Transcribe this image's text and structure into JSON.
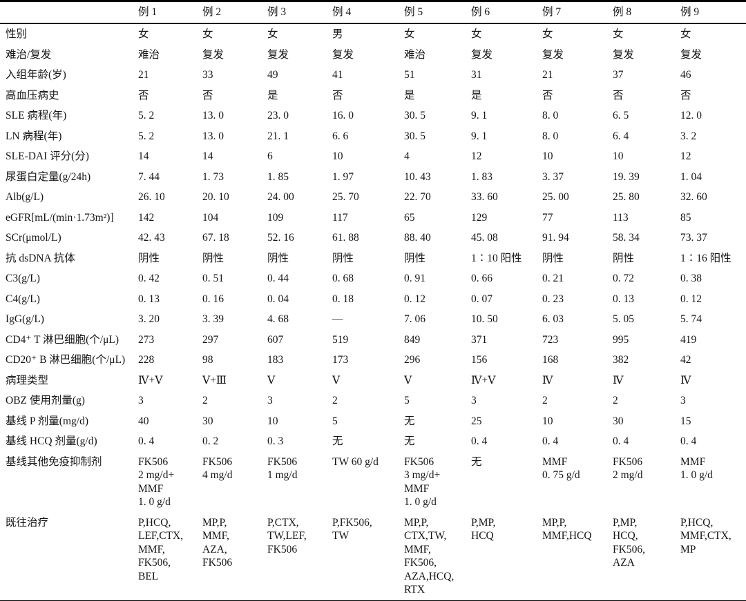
{
  "table": {
    "corner_label": "",
    "case_headers": [
      "例 1",
      "例 2",
      "例 3",
      "例 4",
      "例 5",
      "例 6",
      "例 7",
      "例 8",
      "例 9"
    ],
    "rows": [
      {
        "label": "性别",
        "cells": [
          "女",
          "女",
          "女",
          "男",
          "女",
          "女",
          "女",
          "女",
          "女"
        ]
      },
      {
        "label": "难治/复发",
        "cells": [
          "难治",
          "复发",
          "复发",
          "复发",
          "难治",
          "复发",
          "复发",
          "复发",
          "复发"
        ]
      },
      {
        "label": "入组年龄(岁)",
        "cells": [
          "21",
          "33",
          "49",
          "41",
          "51",
          "31",
          "21",
          "37",
          "46"
        ]
      },
      {
        "label": "高血压病史",
        "cells": [
          "否",
          "否",
          "是",
          "否",
          "是",
          "是",
          "否",
          "否",
          "否"
        ]
      },
      {
        "label": "SLE 病程(年)",
        "cells": [
          "5. 2",
          "13. 0",
          "23. 0",
          "16. 0",
          "30. 5",
          "9. 1",
          "8. 0",
          "6. 5",
          "12. 0"
        ]
      },
      {
        "label": "LN 病程(年)",
        "cells": [
          "5. 2",
          "13. 0",
          "21. 1",
          "6. 6",
          "30. 5",
          "9. 1",
          "8. 0",
          "6. 4",
          "3. 2"
        ]
      },
      {
        "label": "SLE-DAI 评分(分)",
        "cells": [
          "14",
          "14",
          "6",
          "10",
          "4",
          "12",
          "10",
          "10",
          "12"
        ]
      },
      {
        "label": "尿蛋白定量(g/24h)",
        "cells": [
          "7. 44",
          "1. 73",
          "1. 85",
          "1. 97",
          "10. 43",
          "1. 83",
          "3. 37",
          "19. 39",
          "1. 04"
        ]
      },
      {
        "label": "Alb(g/L)",
        "cells": [
          "26. 10",
          "20. 10",
          "24. 00",
          "25. 70",
          "22. 70",
          "33. 60",
          "25. 00",
          "25. 80",
          "32. 60"
        ]
      },
      {
        "label": "eGFR[mL/(min·1.73m²)]",
        "cells": [
          "142",
          "104",
          "109",
          "117",
          "65",
          "129",
          "77",
          "113",
          "85"
        ]
      },
      {
        "label": "SCr(μmol/L)",
        "cells": [
          "42. 43",
          "67. 18",
          "52. 16",
          "61. 88",
          "88. 40",
          "45. 08",
          "91. 94",
          "58. 34",
          "73. 37"
        ]
      },
      {
        "label": "抗 dsDNA 抗体",
        "cells": [
          "阴性",
          "阴性",
          "阴性",
          "阴性",
          "阴性",
          "1∶10 阳性",
          "阴性",
          "阴性",
          "1∶16 阳性"
        ]
      },
      {
        "label": "C3(g/L)",
        "cells": [
          "0. 42",
          "0. 51",
          "0. 44",
          "0. 68",
          "0. 91",
          "0. 66",
          "0. 21",
          "0. 72",
          "0. 38"
        ]
      },
      {
        "label": "C4(g/L)",
        "cells": [
          "0. 13",
          "0. 16",
          "0. 04",
          "0. 18",
          "0. 12",
          "0. 07",
          "0. 23",
          "0. 13",
          "0. 12"
        ]
      },
      {
        "label": "IgG(g/L)",
        "cells": [
          "3. 20",
          "3. 39",
          "4. 68",
          "—",
          "7. 06",
          "10. 50",
          "6. 03",
          "5. 05",
          "5. 74"
        ]
      },
      {
        "label": "CD4⁺ T 淋巴细胞(个/μL)",
        "cells": [
          "273",
          "297",
          "607",
          "519",
          "849",
          "371",
          "723",
          "995",
          "419"
        ]
      },
      {
        "label": "CD20⁺ B 淋巴细胞(个/μL)",
        "cells": [
          "228",
          "98",
          "183",
          "173",
          "296",
          "156",
          "168",
          "382",
          "42"
        ]
      },
      {
        "label": "病理类型",
        "cells": [
          "Ⅳ+Ⅴ",
          "Ⅴ+Ⅲ",
          "Ⅴ",
          "Ⅴ",
          "Ⅴ",
          "Ⅳ+Ⅴ",
          "Ⅳ",
          "Ⅳ",
          "Ⅳ"
        ]
      },
      {
        "label": "OBZ 使用剂量(g)",
        "cells": [
          "3",
          "2",
          "3",
          "2",
          "5",
          "3",
          "2",
          "2",
          "3"
        ]
      },
      {
        "label": "基线 P 剂量(mg/d)",
        "cells": [
          "40",
          "30",
          "10",
          "5",
          "无",
          "25",
          "10",
          "30",
          "15"
        ]
      },
      {
        "label": "基线 HCQ 剂量(g/d)",
        "cells": [
          "0. 4",
          "0. 2",
          "0. 3",
          "无",
          "无",
          "0. 4",
          "0. 4",
          "0. 4",
          "0. 4"
        ]
      },
      {
        "label": "基线其他免疫抑制剂",
        "cells": [
          "FK506\n2 mg/d+\nMMF\n1. 0 g/d",
          "FK506\n4 mg/d",
          "FK506\n1 mg/d",
          "TW 60 g/d",
          "FK506\n3 mg/d+\nMMF\n1. 0 g/d",
          "无",
          "MMF\n0. 75 g/d",
          "FK506\n2 mg/d",
          "MMF\n1. 0 g/d"
        ]
      },
      {
        "label": "既往治疗",
        "cells": [
          "P,HCQ,\nLEF,CTX,\nMMF,\nFK506,\nBEL",
          "MP,P,\nMMF,\nAZA,\nFK506",
          "P,CTX,\nTW,LEF,\nFK506",
          "P,FK506,\nTW",
          "MP,P,\nCTX,TW,\nMMF,\nFK506,\nAZA,HCQ,\nRTX",
          "P,MP,\nHCQ",
          "MP,P,\nMMF,HCQ",
          "P,MP,\nHCQ,\nFK506,\nAZA",
          "P,HCQ,\nMMF,CTX,\nMP"
        ]
      }
    ]
  },
  "colors": {
    "background": "#ffffff",
    "rule": "#000000",
    "text": "#151515"
  }
}
